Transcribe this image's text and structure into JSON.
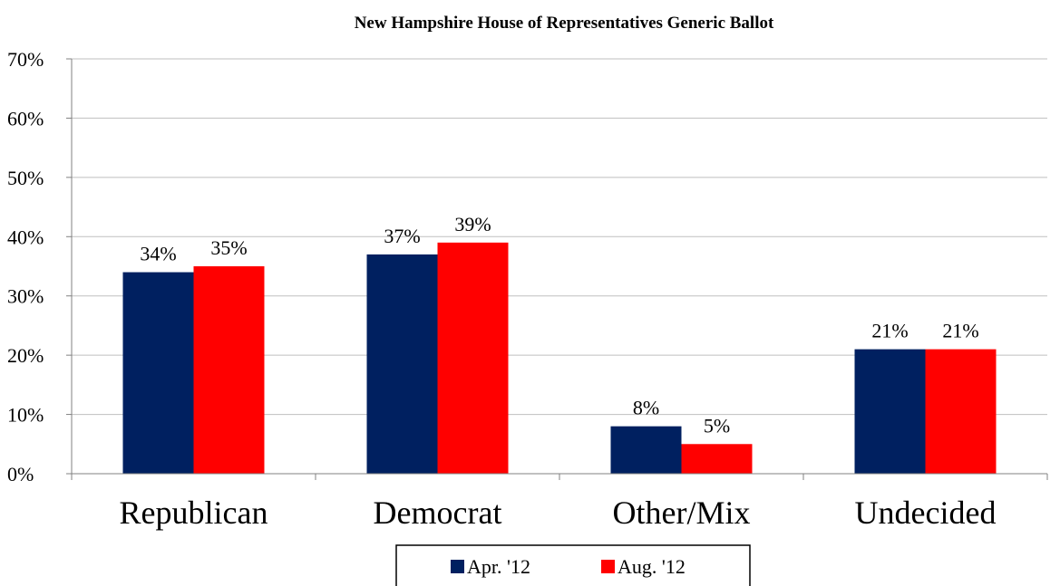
{
  "chart_data": {
    "type": "bar",
    "title": "New Hampshire House of Representatives Generic Ballot",
    "xlabel": "",
    "ylabel": "",
    "categories": [
      "Republican",
      "Democrat",
      "Other/Mix",
      "Undecided"
    ],
    "series": [
      {
        "name": "Apr. '12",
        "values": [
          34,
          37,
          8,
          21
        ],
        "labels": [
          "34%",
          "37%",
          "8%",
          "21%"
        ],
        "color": "#002060"
      },
      {
        "name": "Aug. '12",
        "values": [
          35,
          39,
          5,
          21
        ],
        "labels": [
          "35%",
          "39%",
          "5%",
          "21%"
        ],
        "color": "#ff0000"
      }
    ],
    "ylim": [
      0,
      70
    ],
    "yticks": [
      0,
      10,
      20,
      30,
      40,
      50,
      60,
      70
    ],
    "ytick_labels": [
      "0%",
      "10%",
      "20%",
      "30%",
      "40%",
      "50%",
      "60%",
      "70%"
    ],
    "grid": true,
    "legend_position": "bottom-center",
    "gridline_color": "#bfbfbf",
    "axis_color": "#808080"
  }
}
